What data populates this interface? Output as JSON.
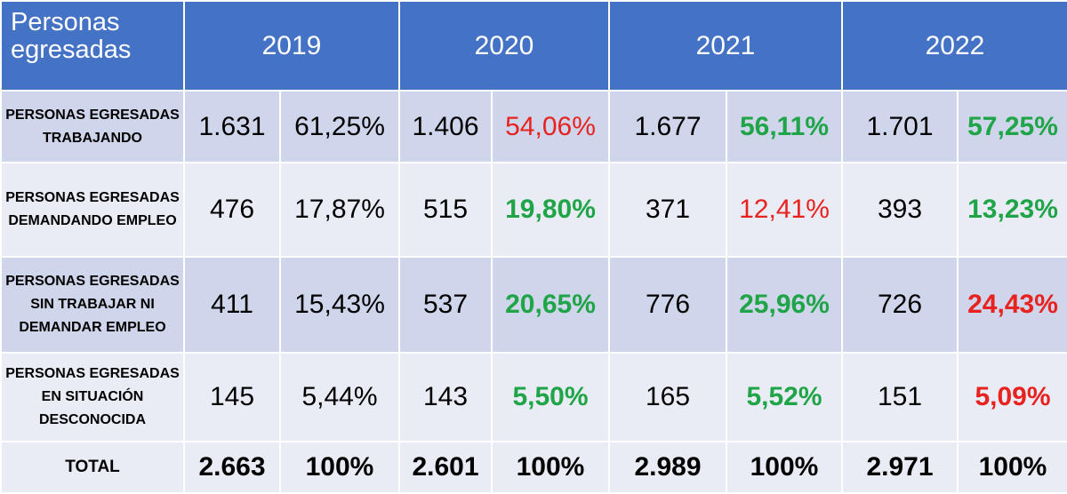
{
  "chart_data": {
    "type": "table",
    "corner_header": "Personas egresadas",
    "years": [
      "2019",
      "2020",
      "2021",
      "2022"
    ],
    "rows": [
      {
        "label": "PERSONAS EGRESADAS TRABAJANDO",
        "cells": [
          {
            "count": "1.631",
            "pct": "61,25%",
            "pct_color": "#000000"
          },
          {
            "count": "1.406",
            "pct": "54,06%",
            "pct_color": "#e8221f"
          },
          {
            "count": "1.677",
            "pct": "56,11%",
            "pct_color": "#1fa547"
          },
          {
            "count": "1.701",
            "pct": "57,25%",
            "pct_color": "#1fa547"
          }
        ]
      },
      {
        "label": "PERSONAS EGRESADAS DEMANDANDO EMPLEO",
        "cells": [
          {
            "count": "476",
            "pct": "17,87%",
            "pct_color": "#000000"
          },
          {
            "count": "515",
            "pct": "19,80%",
            "pct_color": "#1fa547"
          },
          {
            "count": "371",
            "pct": "12,41%",
            "pct_color": "#e8221f"
          },
          {
            "count": "393",
            "pct": "13,23%",
            "pct_color": "#1fa547"
          }
        ]
      },
      {
        "label": "PERSONAS EGRESADAS SIN TRABAJAR NI DEMANDAR EMPLEO",
        "cells": [
          {
            "count": "411",
            "pct": "15,43%",
            "pct_color": "#000000"
          },
          {
            "count": "537",
            "pct": "20,65%",
            "pct_color": "#1fa547"
          },
          {
            "count": "776",
            "pct": "25,96%",
            "pct_color": "#1fa547"
          },
          {
            "count": "726",
            "pct": "24,43%",
            "pct_color": "#e8221f"
          }
        ]
      },
      {
        "label": "PERSONAS EGRESADAS EN SITUACIÓN DESCONOCIDA",
        "cells": [
          {
            "count": "145",
            "pct": "5,44%",
            "pct_color": "#000000"
          },
          {
            "count": "143",
            "pct": "5,50%",
            "pct_color": "#1fa547"
          },
          {
            "count": "165",
            "pct": "5,52%",
            "pct_color": "#1fa547"
          },
          {
            "count": "151",
            "pct": "5,09%",
            "pct_color": "#e8221f"
          }
        ]
      }
    ],
    "total": {
      "label": "TOTAL",
      "cells": [
        {
          "count": "2.663",
          "pct": "100%"
        },
        {
          "count": "2.601",
          "pct": "100%"
        },
        {
          "count": "2.989",
          "pct": "100%"
        },
        {
          "count": "2.971",
          "pct": "100%"
        }
      ]
    },
    "colors": {
      "header_bg": "#4472c4",
      "row_dark": "#cfd5ea",
      "row_light": "#e9ebf5",
      "increase": "#1fa547",
      "decrease": "#e8221f"
    }
  }
}
